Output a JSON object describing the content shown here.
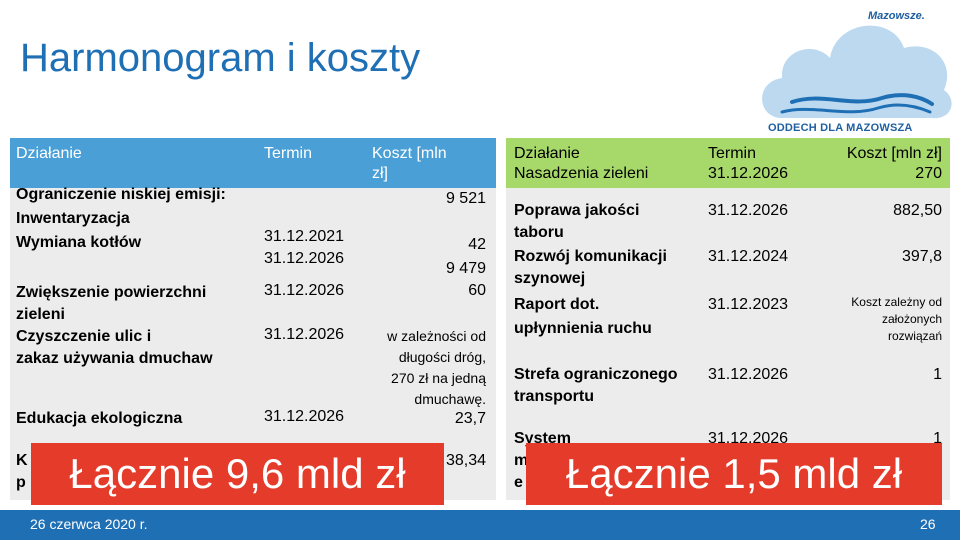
{
  "title": "Harmonogram i koszty",
  "logo": {
    "brand": "Mazowsze.",
    "tagline": "ODDECH DLA MAZOWSZA"
  },
  "left_table": {
    "headers": {
      "action": "Działanie",
      "term": "Termin",
      "cost_line1": "Koszt [mln",
      "cost_line2": "zł]"
    },
    "rows": {
      "r1": {
        "a1": "Ograniczenie niskiej emisji:",
        "a2": "Inwentaryzacja",
        "a3": "Wymiana kotłów",
        "t2": "31.12.2021",
        "t3": "31.12.2026",
        "c1": "9 521",
        "c2": "42",
        "c3": "9 479"
      },
      "r2": {
        "a1": "Zwiększenie powierzchni",
        "a2": "zieleni",
        "t1": "31.12.2026",
        "c1": "60"
      },
      "r3": {
        "a1": "Czyszczenie ulic i",
        "a2": "zakaz używania dmuchaw",
        "t1": "31.12.2026",
        "c1": "w zależności od",
        "c2": "długości dróg,",
        "c3": "270 zł na jedną",
        "c4": "dmuchawę."
      },
      "r4": {
        "a1": "Edukacja ekologiczna",
        "t1": "31.12.2026",
        "c1": "23,7"
      },
      "r5": {
        "a1": "K",
        "a2": "p",
        "c1": "38,34"
      }
    },
    "total": "Łącznie 9,6 mld zł"
  },
  "right_table": {
    "headers": {
      "action": "Działanie",
      "action2": "Nasadzenia zieleni",
      "term": "Termin",
      "term2": "31.12.2026",
      "cost": "Koszt [mln zł]",
      "cost2": "270"
    },
    "rows": {
      "r1": {
        "a1": "Poprawa jakości",
        "a2": "taboru",
        "t1": "31.12.2026",
        "c1": "882,50"
      },
      "r2": {
        "a1": "Rozwój komunikacji",
        "a2": "szynowej",
        "t1": "31.12.2024",
        "c1": "397,8"
      },
      "r3": {
        "a1": "Raport dot.",
        "a2": "upłynnienia ruchu",
        "t1": "31.12.2023",
        "c1": "Koszt zależny od",
        "c2": "założonych",
        "c3": "rozwiązań"
      },
      "r4": {
        "a1": "Strefa ograniczonego",
        "a2": "transportu",
        "t1": "31.12.2026",
        "c1": "1"
      },
      "r5": {
        "a1": "System",
        "a2": "m",
        "a3": "e",
        "t1": "31.12.2026",
        "c1": "1"
      }
    },
    "total": "Łącznie 1,5 mld zł"
  },
  "footer": {
    "date": "26 czerwca 2020 r.",
    "page": "26"
  }
}
